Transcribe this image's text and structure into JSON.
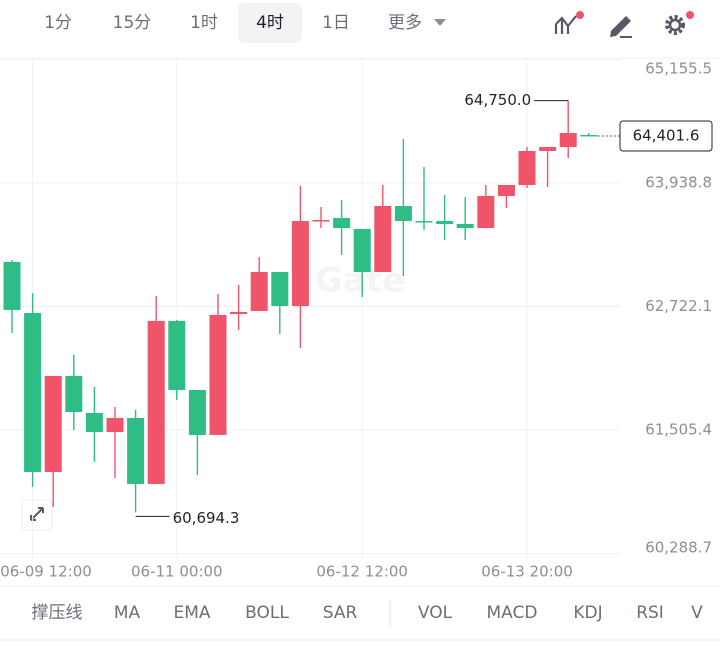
{
  "toolbar": {
    "timeframes": [
      "1分",
      "15分",
      "1时",
      "4时",
      "1日"
    ],
    "more": "更多"
  },
  "indicators": [
    "撑压线",
    "MA",
    "EMA",
    "BOLL",
    "SAR",
    "VOL",
    "MACD",
    "KDJ",
    "RSI",
    "V"
  ],
  "chart_data": {
    "type": "candlestick",
    "watermark": "Gate",
    "categories": [
      null,
      "06-09 12:00",
      null,
      null,
      null,
      null,
      null,
      null,
      "06-11 00:00",
      null,
      null,
      null,
      null,
      null,
      null,
      null,
      null,
      "06-12 12:00",
      null,
      null,
      null,
      null,
      null,
      null,
      null,
      "06-13 20:00",
      null,
      null,
      null
    ],
    "open": [
      63161,
      62658,
      61092,
      62038,
      61673,
      61486,
      61624,
      60974,
      62580,
      61900,
      61457,
      62648,
      62678,
      63062,
      62727,
      63564,
      63594,
      63486,
      63062,
      63712,
      63564,
      63564,
      63535,
      63495,
      63811,
      63919,
      64254,
      64293,
      64412
    ],
    "high": [
      63180,
      62855,
      62038,
      62245,
      61930,
      61732,
      61703,
      62826,
      62589,
      61900,
      62845,
      62934,
      63210,
      63062,
      63909,
      63702,
      63771,
      63486,
      63919,
      64372,
      64096,
      63821,
      63801,
      63919,
      63919,
      64293,
      64293,
      64750.0,
      64431
    ],
    "low": [
      62461,
      60944,
      60747,
      61506,
      61191,
      61033,
      60694.3,
      60974,
      61801,
      61062,
      61457,
      62491,
      62678,
      62452,
      62313,
      63495,
      63230,
      62816,
      63062,
      63023,
      63476,
      63377,
      63377,
      63495,
      63692,
      63890,
      63899,
      64185,
      64401.6
    ],
    "close": [
      62688,
      61092,
      62038,
      61683,
      61486,
      61624,
      60974,
      62580,
      61900,
      61457,
      62639,
      62668,
      63062,
      62727,
      63564,
      63574,
      63495,
      63062,
      63712,
      63564,
      63555,
      63535,
      63495,
      63811,
      63919,
      64254,
      64293,
      64431,
      64401.6
    ],
    "up_color": "#ef5469",
    "down_color": "#2ebd85",
    "ylim": [
      60225,
      65170
    ],
    "yticks": [
      {
        "value": 60288.7,
        "label": "60,288.7"
      },
      {
        "value": 61505.4,
        "label": "61,505.4"
      },
      {
        "value": 62722.1,
        "label": "62,722.1"
      },
      {
        "value": 63938.8,
        "label": "63,938.8"
      },
      {
        "value": 65155.5,
        "label": "65,155.5"
      }
    ],
    "grid": true,
    "high_label": {
      "value": 64750.0,
      "label": "64,750.0"
    },
    "low_label": {
      "value": 60694.3,
      "label": "60,694.3"
    },
    "last_price": {
      "value": 64401.6,
      "label": "64,401.6"
    }
  }
}
